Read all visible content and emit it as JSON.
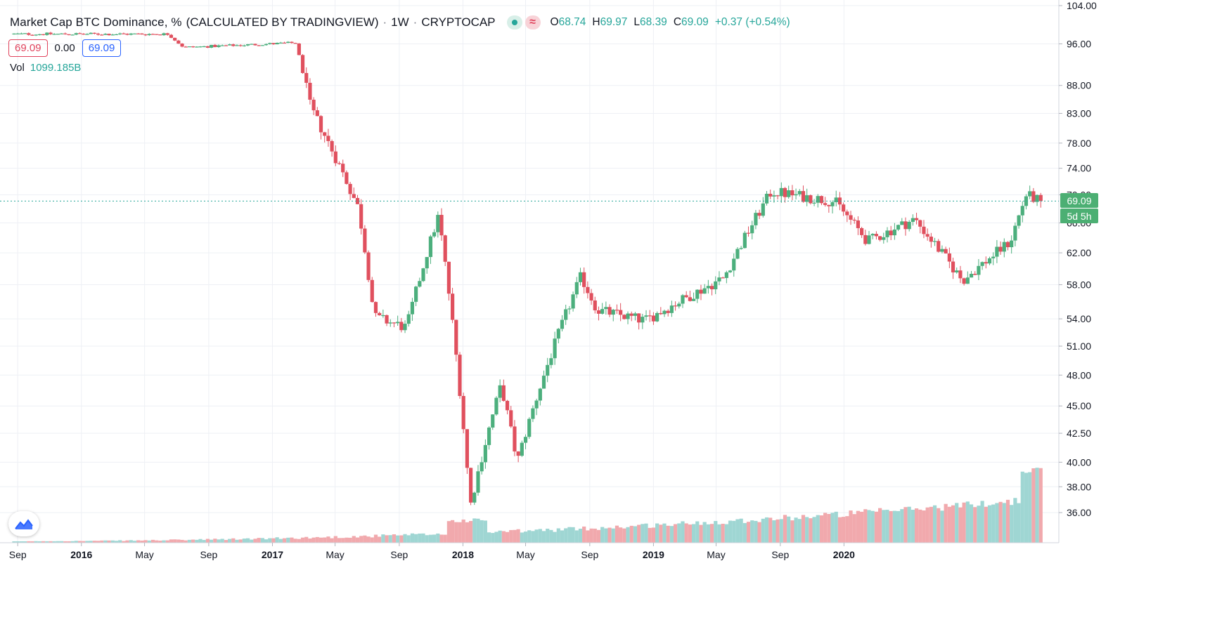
{
  "legend": {
    "title": "Market Cap BTC Dominance, %",
    "source": "(CALCULATED BY TRADINGVIEW)",
    "interval": "1W",
    "exchange": "CRYPTOCAP",
    "separator": "·",
    "wave_glyph": "≈",
    "ohlc": [
      {
        "label": "O",
        "value": "68.74"
      },
      {
        "label": "H",
        "value": "69.97"
      },
      {
        "label": "L",
        "value": "68.39"
      },
      {
        "label": "C",
        "value": "69.09"
      },
      {
        "label": "",
        "value": "+0.37 (+0.54%)"
      }
    ]
  },
  "inputs": {
    "sell": "69.09",
    "spread": "0.00",
    "buy": "69.09"
  },
  "volume": {
    "label": "Vol",
    "value": "1099.185B"
  },
  "price_tag": {
    "last": "69.09",
    "countdown": "5d 5h"
  },
  "colors": {
    "up": "#26a69a",
    "down": "#ef5350",
    "grid": "#f0f3fa",
    "last_line": "#26a69a"
  },
  "icons": [
    "visibility-dot-icon",
    "wave-icon",
    "tradingview-logo-icon"
  ],
  "chart_data": {
    "type": "candlestick",
    "title": "Market Cap BTC Dominance, %",
    "interval": "1W",
    "y_scale": "log",
    "ylim": [
      33.8,
      104.0
    ],
    "y_ticks": [
      "104.00",
      "96.00",
      "88.00",
      "83.00",
      "78.00",
      "74.00",
      "70.00",
      "66.00",
      "62.00",
      "58.00",
      "54.00",
      "51.00",
      "48.00",
      "45.00",
      "42.50",
      "40.00",
      "38.00",
      "36.00"
    ],
    "x_ticks": [
      "Sep",
      "2016",
      "May",
      "Sep",
      "2017",
      "May",
      "Sep",
      "2018",
      "May",
      "Sep",
      "2019",
      "May",
      "Sep",
      "2020"
    ],
    "grid": true,
    "volume_overlay": true,
    "key_closes": [
      {
        "date": "2015-09",
        "value": 98.0
      },
      {
        "date": "2016-06",
        "value": 98.0
      },
      {
        "date": "2016-07",
        "value": 95.3
      },
      {
        "date": "2017-02",
        "value": 96.2
      },
      {
        "date": "2017-03",
        "value": 84.0
      },
      {
        "date": "2017-06",
        "value": 68.0
      },
      {
        "date": "2017-07",
        "value": 54.2
      },
      {
        "date": "2017-09",
        "value": 53.0
      },
      {
        "date": "2017-11",
        "value": 67.0
      },
      {
        "date": "2018-01",
        "value": 36.5
      },
      {
        "date": "2018-03",
        "value": 47.0
      },
      {
        "date": "2018-04",
        "value": 40.0
      },
      {
        "date": "2018-08",
        "value": 59.0
      },
      {
        "date": "2018-09",
        "value": 55.0
      },
      {
        "date": "2018-12",
        "value": 53.8
      },
      {
        "date": "2019-05",
        "value": 58.8
      },
      {
        "date": "2019-08",
        "value": 70.5
      },
      {
        "date": "2019-12",
        "value": 69.0
      },
      {
        "date": "2020-02",
        "value": 63.5
      },
      {
        "date": "2020-05",
        "value": 66.5
      },
      {
        "date": "2020-08",
        "value": 58.5
      },
      {
        "date": "2020-11",
        "value": 63.5
      },
      {
        "date": "2020-12",
        "value": 70.0
      },
      {
        "date": "2021-01",
        "value": 69.09
      }
    ],
    "last_close": 69.09
  }
}
